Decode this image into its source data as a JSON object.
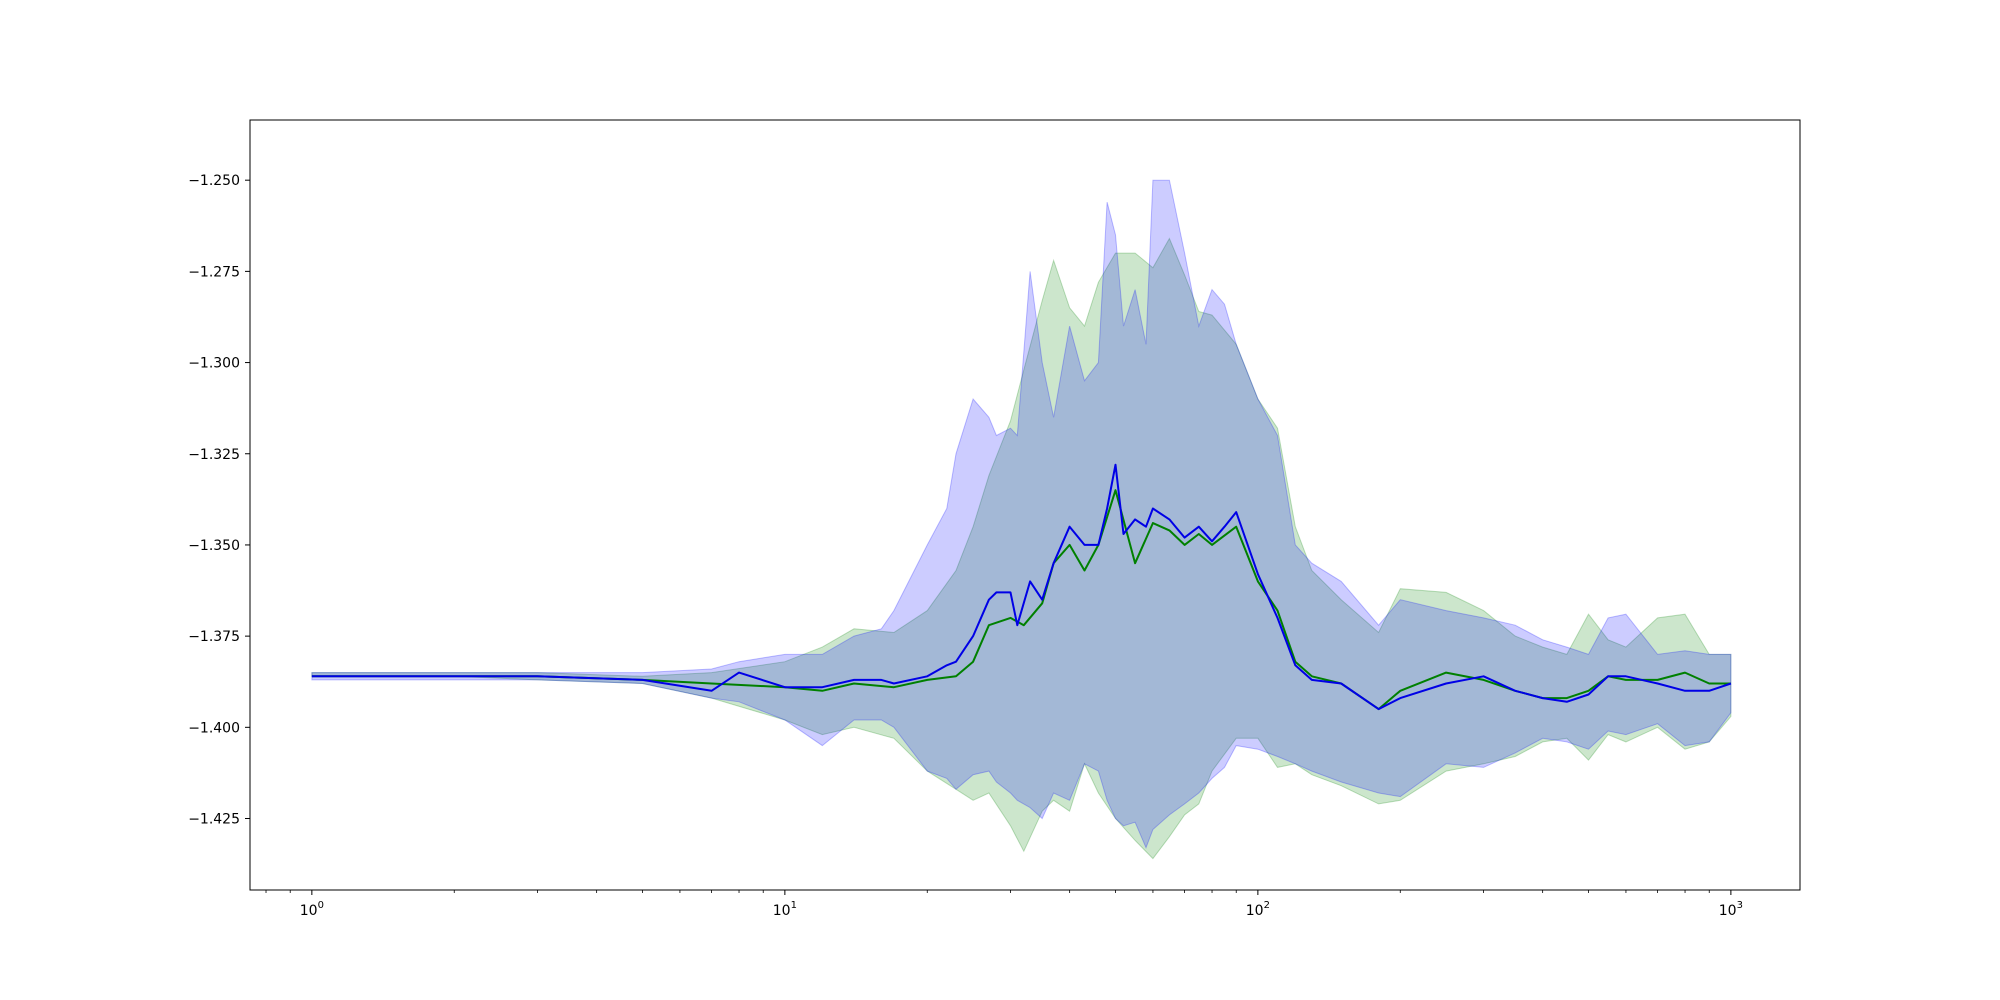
{
  "chart_data": {
    "type": "line",
    "title": "",
    "xlabel": "",
    "ylabel": "",
    "xscale": "log",
    "xlim": [
      0.74,
      1400
    ],
    "ylim": [
      -1.4446,
      -1.2335
    ],
    "grid": false,
    "legend": "none",
    "x_ticks": [
      {
        "value": 1,
        "base": "10",
        "exp": "0"
      },
      {
        "value": 10,
        "base": "10",
        "exp": "1"
      },
      {
        "value": 100,
        "base": "10",
        "exp": "2"
      },
      {
        "value": 1000,
        "base": "10",
        "exp": "3"
      }
    ],
    "y_ticks": [
      {
        "value": -1.25,
        "label": "−1.250"
      },
      {
        "value": -1.275,
        "label": "−1.275"
      },
      {
        "value": -1.3,
        "label": "−1.300"
      },
      {
        "value": -1.325,
        "label": "−1.325"
      },
      {
        "value": -1.35,
        "label": "−1.350"
      },
      {
        "value": -1.375,
        "label": "−1.375"
      },
      {
        "value": -1.4,
        "label": "−1.400"
      },
      {
        "value": -1.425,
        "label": "−1.425"
      }
    ],
    "series": [
      {
        "color": "#008000",
        "band_color": "#008000",
        "band_opacity": 0.2,
        "x": [
          1,
          2,
          3,
          5,
          7,
          10,
          12,
          14,
          17,
          20,
          23,
          25,
          27,
          30,
          32,
          35,
          37,
          40,
          43,
          46,
          50,
          55,
          60,
          65,
          70,
          75,
          80,
          90,
          100,
          110,
          120,
          130,
          150,
          180,
          200,
          250,
          300,
          350,
          400,
          450,
          500,
          550,
          600,
          700,
          800,
          900,
          1000
        ],
        "y": [
          -1.386,
          -1.386,
          -1.386,
          -1.387,
          -1.388,
          -1.389,
          -1.39,
          -1.388,
          -1.389,
          -1.387,
          -1.386,
          -1.382,
          -1.372,
          -1.37,
          -1.372,
          -1.366,
          -1.355,
          -1.35,
          -1.357,
          -1.35,
          -1.335,
          -1.355,
          -1.344,
          -1.346,
          -1.35,
          -1.347,
          -1.35,
          -1.345,
          -1.36,
          -1.368,
          -1.382,
          -1.386,
          -1.388,
          -1.395,
          -1.39,
          -1.385,
          -1.387,
          -1.39,
          -1.392,
          -1.392,
          -1.39,
          -1.386,
          -1.387,
          -1.387,
          -1.385,
          -1.388,
          -1.388
        ],
        "upper": [
          -1.385,
          -1.385,
          -1.385,
          -1.386,
          -1.385,
          -1.382,
          -1.378,
          -1.373,
          -1.374,
          -1.368,
          -1.357,
          -1.345,
          -1.331,
          -1.316,
          -1.302,
          -1.283,
          -1.272,
          -1.285,
          -1.29,
          -1.278,
          -1.27,
          -1.27,
          -1.274,
          -1.266,
          -1.276,
          -1.286,
          -1.287,
          -1.295,
          -1.31,
          -1.318,
          -1.345,
          -1.357,
          -1.365,
          -1.374,
          -1.362,
          -1.363,
          -1.368,
          -1.375,
          -1.378,
          -1.38,
          -1.369,
          -1.376,
          -1.378,
          -1.37,
          -1.369,
          -1.38,
          -1.38
        ],
        "lower": [
          -1.386,
          -1.386,
          -1.387,
          -1.388,
          -1.392,
          -1.398,
          -1.402,
          -1.4,
          -1.403,
          -1.412,
          -1.417,
          -1.42,
          -1.418,
          -1.427,
          -1.434,
          -1.423,
          -1.42,
          -1.423,
          -1.41,
          -1.418,
          -1.425,
          -1.431,
          -1.436,
          -1.43,
          -1.424,
          -1.421,
          -1.412,
          -1.403,
          -1.403,
          -1.411,
          -1.41,
          -1.413,
          -1.416,
          -1.421,
          -1.42,
          -1.412,
          -1.41,
          -1.408,
          -1.404,
          -1.403,
          -1.409,
          -1.402,
          -1.404,
          -1.4,
          -1.406,
          -1.404,
          -1.397
        ]
      },
      {
        "color": "#0000e6",
        "band_color": "#0000ff",
        "band_opacity": 0.2,
        "x": [
          1,
          2,
          3,
          5,
          7,
          8,
          10,
          12,
          14,
          16,
          17,
          20,
          22,
          23,
          25,
          27,
          28,
          30,
          31,
          33,
          35,
          37,
          40,
          43,
          46,
          48,
          50,
          52,
          55,
          58,
          60,
          65,
          70,
          75,
          80,
          85,
          90,
          100,
          110,
          120,
          130,
          150,
          180,
          200,
          250,
          300,
          350,
          400,
          450,
          500,
          550,
          600,
          700,
          800,
          900,
          1000
        ],
        "y": [
          -1.386,
          -1.386,
          -1.386,
          -1.387,
          -1.39,
          -1.385,
          -1.389,
          -1.389,
          -1.387,
          -1.387,
          -1.388,
          -1.386,
          -1.383,
          -1.382,
          -1.375,
          -1.365,
          -1.363,
          -1.363,
          -1.372,
          -1.36,
          -1.365,
          -1.355,
          -1.345,
          -1.35,
          -1.35,
          -1.34,
          -1.328,
          -1.347,
          -1.343,
          -1.345,
          -1.34,
          -1.343,
          -1.348,
          -1.345,
          -1.349,
          -1.345,
          -1.341,
          -1.358,
          -1.37,
          -1.383,
          -1.387,
          -1.388,
          -1.395,
          -1.392,
          -1.388,
          -1.386,
          -1.39,
          -1.392,
          -1.393,
          -1.391,
          -1.386,
          -1.386,
          -1.388,
          -1.39,
          -1.39,
          -1.388
        ],
        "upper": [
          -1.385,
          -1.385,
          -1.385,
          -1.385,
          -1.384,
          -1.382,
          -1.38,
          -1.38,
          -1.375,
          -1.373,
          -1.368,
          -1.35,
          -1.34,
          -1.325,
          -1.31,
          -1.315,
          -1.32,
          -1.318,
          -1.32,
          -1.275,
          -1.3,
          -1.315,
          -1.29,
          -1.305,
          -1.3,
          -1.256,
          -1.265,
          -1.29,
          -1.28,
          -1.295,
          -1.25,
          -1.25,
          -1.27,
          -1.29,
          -1.28,
          -1.284,
          -1.295,
          -1.31,
          -1.32,
          -1.35,
          -1.355,
          -1.36,
          -1.372,
          -1.365,
          -1.368,
          -1.37,
          -1.372,
          -1.376,
          -1.378,
          -1.38,
          -1.37,
          -1.369,
          -1.38,
          -1.379,
          -1.38,
          -1.38
        ],
        "lower": [
          -1.387,
          -1.387,
          -1.387,
          -1.388,
          -1.392,
          -1.393,
          -1.398,
          -1.405,
          -1.398,
          -1.398,
          -1.4,
          -1.412,
          -1.414,
          -1.417,
          -1.413,
          -1.412,
          -1.415,
          -1.418,
          -1.42,
          -1.422,
          -1.425,
          -1.418,
          -1.42,
          -1.41,
          -1.412,
          -1.42,
          -1.425,
          -1.427,
          -1.426,
          -1.433,
          -1.428,
          -1.424,
          -1.421,
          -1.418,
          -1.414,
          -1.411,
          -1.405,
          -1.406,
          -1.408,
          -1.41,
          -1.412,
          -1.415,
          -1.418,
          -1.419,
          -1.41,
          -1.411,
          -1.407,
          -1.403,
          -1.404,
          -1.406,
          -1.401,
          -1.402,
          -1.399,
          -1.405,
          -1.404,
          -1.396
        ]
      }
    ]
  }
}
